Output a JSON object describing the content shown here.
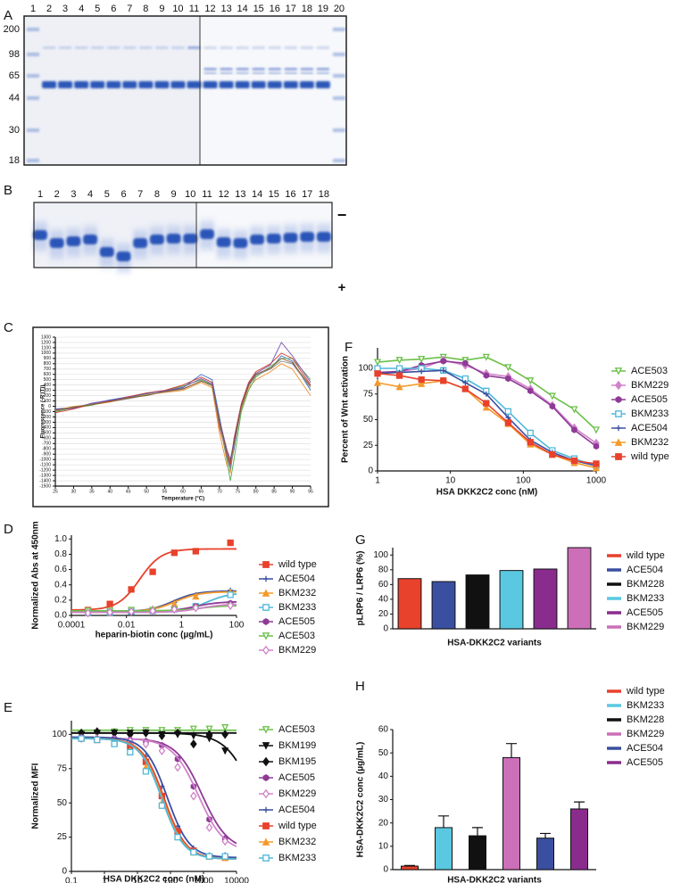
{
  "gels": {
    "a": {
      "label": "A",
      "lanes": [
        "1",
        "2",
        "3",
        "4",
        "5",
        "6",
        "7",
        "8",
        "9",
        "10",
        "11",
        "12",
        "13",
        "14",
        "15",
        "16",
        "17",
        "18",
        "19",
        "20"
      ],
      "markers": [
        "200",
        "98",
        "65",
        "44",
        "30",
        "18"
      ]
    },
    "b": {
      "label": "B",
      "lanes": [
        "1",
        "2",
        "3",
        "4",
        "5",
        "6",
        "7",
        "8",
        "9",
        "10",
        "11",
        "12",
        "13",
        "14",
        "15",
        "16",
        "17",
        "18"
      ],
      "polarity": [
        "−",
        "+"
      ]
    }
  },
  "chart_data": [
    {
      "type": "line",
      "label": "C",
      "x_label": "Temperature (°C)",
      "y_label": "Fluorescence (-R'(T))",
      "x": [
        25,
        30,
        35,
        40,
        45,
        50,
        55,
        60,
        65,
        68,
        70,
        72,
        73,
        74,
        76,
        78,
        80,
        84,
        87,
        90,
        95
      ],
      "xlim": [
        25,
        95
      ],
      "xticks": [
        25,
        30,
        35,
        40,
        45,
        50,
        55,
        60,
        65,
        70,
        75,
        80,
        85,
        90,
        95
      ],
      "ylim": [
        -1500,
        1300
      ],
      "yticks": [
        -1500,
        -1400,
        -1300,
        -1200,
        -1100,
        -1000,
        -900,
        -800,
        -700,
        -600,
        -500,
        -400,
        -300,
        -200,
        -100,
        0,
        100,
        200,
        300,
        400,
        500,
        600,
        700,
        800,
        900,
        1000,
        1100,
        1200,
        1300
      ],
      "grid": true,
      "series": [
        {
          "color": "#3b6fc4",
          "values": [
            -50,
            -20,
            50,
            120,
            180,
            200,
            280,
            350,
            600,
            500,
            -200,
            -900,
            -1150,
            -800,
            0,
            400,
            600,
            700,
            950,
            850,
            300
          ]
        },
        {
          "color": "#f0902a",
          "values": [
            -80,
            0,
            30,
            80,
            150,
            220,
            260,
            300,
            450,
            350,
            -500,
            -1100,
            -1250,
            -700,
            -50,
            350,
            500,
            650,
            800,
            700,
            200
          ]
        },
        {
          "color": "#50b050",
          "values": [
            -100,
            -30,
            20,
            100,
            160,
            230,
            300,
            380,
            500,
            400,
            -300,
            -1000,
            -1400,
            -1000,
            -100,
            300,
            550,
            750,
            900,
            900,
            500
          ]
        },
        {
          "color": "#d23a2a",
          "values": [
            -120,
            -50,
            40,
            100,
            180,
            250,
            300,
            400,
            550,
            450,
            -400,
            -900,
            -1100,
            -600,
            50,
            450,
            650,
            800,
            1000,
            900,
            400
          ]
        },
        {
          "color": "#7b4fb0",
          "values": [
            -60,
            -40,
            60,
            110,
            170,
            240,
            290,
            360,
            520,
            420,
            -250,
            -800,
            -1000,
            -650,
            20,
            420,
            620,
            780,
            1200,
            950,
            450
          ]
        },
        {
          "color": "#8a8a8a",
          "values": [
            -90,
            -10,
            40,
            90,
            140,
            210,
            270,
            320,
            480,
            380,
            -350,
            -950,
            -1200,
            -750,
            -30,
            380,
            580,
            700,
            850,
            800,
            350
          ]
        },
        {
          "color": "#8b5a2b",
          "values": [
            -70,
            -20,
            30,
            90,
            160,
            200,
            280,
            330,
            470,
            400,
            -300,
            -850,
            -1050,
            -700,
            0,
            400,
            600,
            720,
            900,
            820,
            380
          ]
        }
      ]
    },
    {
      "type": "scatter",
      "label": "D",
      "x_label": "heparin-biotin conc (µg/mL)",
      "y_label": "Normalized Abs at 450nm",
      "log_x": true,
      "xlim": [
        0.0001,
        100
      ],
      "xticks": [
        0.0001,
        0.01,
        1,
        100
      ],
      "ylim": [
        0,
        1.05
      ],
      "yticks": [
        {
          "value": 0,
          "label": "0.0"
        },
        {
          "value": 0.2,
          "label": "0.2"
        },
        {
          "value": 0.4,
          "label": "0.4"
        },
        {
          "value": 0.6,
          "label": "0.6"
        },
        {
          "value": 0.8,
          "label": "0.8"
        },
        {
          "value": 1,
          "label": "1.0"
        }
      ],
      "x": [
        0.0004,
        0.0025,
        0.015,
        0.09,
        0.55,
        3.3,
        60
      ],
      "legend": "right",
      "series": [
        {
          "name": "wild type",
          "color": "#e8412c",
          "marker": "square",
          "values": [
            0.07,
            0.15,
            0.34,
            0.57,
            0.82,
            0.84,
            0.95
          ],
          "fit": [
            0.07,
            0.87,
            0.03,
            1.1
          ]
        },
        {
          "name": "ACE504",
          "color": "#3b4fa0",
          "marker": "plus",
          "values": [
            0.05,
            0.05,
            0.06,
            0.09,
            0.17,
            0.27,
            0.33
          ],
          "fit": [
            0.05,
            0.32,
            0.5,
            1
          ]
        },
        {
          "name": "BKM232",
          "color": "#f39a2b",
          "marker": "triangle",
          "values": [
            0.05,
            0.05,
            0.06,
            0.08,
            0.15,
            0.25,
            0.3
          ],
          "fit": [
            0.05,
            0.31,
            0.6,
            1
          ]
        },
        {
          "name": "BKM233",
          "color": "#4fb8d9",
          "marker": "open-square",
          "values": [
            0.04,
            0.04,
            0.05,
            0.06,
            0.08,
            0.12,
            0.27
          ],
          "fit": [
            0.04,
            0.3,
            8,
            1
          ]
        },
        {
          "name": "ACE505",
          "color": "#8e3a96",
          "marker": "hexagon",
          "values": [
            0.05,
            0.05,
            0.05,
            0.07,
            0.09,
            0.12,
            0.16
          ],
          "fit": [
            0.05,
            0.18,
            3,
            1
          ]
        },
        {
          "name": "ACE503",
          "color": "#6cc04a",
          "marker": "open-down-triangle",
          "values": [
            0.06,
            0.06,
            0.07,
            0.07,
            0.08,
            0.09,
            0.12
          ],
          "fit": [
            0.06,
            0.13,
            5,
            1
          ]
        },
        {
          "name": "BKM229",
          "color": "#d084c9",
          "marker": "open-diamond",
          "values": [
            0.03,
            0.04,
            0.05,
            0.06,
            0.08,
            0.1,
            0.13
          ],
          "fit": [
            0.04,
            0.15,
            5,
            1
          ]
        }
      ]
    },
    {
      "type": "scatter",
      "label": "E",
      "x_label": "HSA DKK2C2 conc (nM)",
      "y_label": "Normalized MFI",
      "log_x": true,
      "xlim": [
        0.1,
        10000
      ],
      "xticks": [
        0.1,
        1,
        10,
        100,
        1000,
        10000
      ],
      "ylim": [
        0,
        110
      ],
      "yticks": [
        0,
        25,
        50,
        75,
        100
      ],
      "x": [
        0.2,
        0.6,
        2,
        6,
        18,
        55,
        165,
        500,
        1500,
        4500
      ],
      "legend": "right",
      "series": [
        {
          "name": "ACE503",
          "color": "#6cc04a",
          "marker": "open-down-triangle",
          "values": [
            100,
            101,
            102,
            103,
            103,
            103,
            103,
            104,
            104,
            105
          ],
          "fit": [
            103,
            103,
            1000,
            1
          ]
        },
        {
          "name": "BKM199",
          "color": "#111111",
          "marker": "down-triangle",
          "values": [
            100,
            101,
            101,
            101,
            101,
            100,
            100,
            99,
            97,
            88
          ],
          "fit": [
            101,
            0,
            40000,
            1
          ]
        },
        {
          "name": "BKM195",
          "color": "#111111",
          "marker": "diamond",
          "values": [
            101,
            102,
            101,
            100,
            101,
            99,
            101,
            93,
            100,
            100
          ],
          "fit": [
            101,
            101,
            1000,
            1
          ]
        },
        {
          "name": "ACE505",
          "color": "#8e3a96",
          "marker": "hexagon",
          "values": [
            98,
            97,
            97,
            96,
            95,
            92,
            82,
            62,
            38,
            24
          ],
          "fit": [
            97,
            15,
            900,
            1.1
          ]
        },
        {
          "name": "BKM229",
          "color": "#d084c9",
          "marker": "open-diamond",
          "values": [
            97,
            97,
            96,
            95,
            93,
            88,
            76,
            55,
            32,
            22
          ],
          "fit": [
            97,
            14,
            700,
            1.1
          ]
        },
        {
          "name": "ACE504",
          "color": "#3b4fa0",
          "marker": "plus",
          "values": [
            98,
            97,
            96,
            93,
            84,
            62,
            33,
            17,
            12,
            12
          ],
          "fit": [
            98,
            10,
            80,
            1.3
          ]
        },
        {
          "name": "wild type",
          "color": "#e8412c",
          "marker": "square",
          "values": [
            97,
            96,
            94,
            91,
            80,
            55,
            29,
            15,
            11,
            10
          ],
          "fit": [
            97,
            9,
            65,
            1.3
          ]
        },
        {
          "name": "BKM232",
          "color": "#f39a2b",
          "marker": "triangle",
          "values": [
            97,
            96,
            94,
            88,
            76,
            50,
            26,
            14,
            11,
            10
          ],
          "fit": [
            97,
            9,
            58,
            1.3
          ]
        },
        {
          "name": "BKM233",
          "color": "#4fb8d9",
          "marker": "open-square",
          "values": [
            97,
            96,
            93,
            87,
            73,
            48,
            25,
            14,
            11,
            11
          ],
          "fit": [
            97,
            9,
            55,
            1.3
          ]
        }
      ]
    },
    {
      "type": "line",
      "label": "F",
      "x_label": "HSA DKK2C2 conc (nM)",
      "y_label": "Percent of Wnt activation",
      "log_x": true,
      "xlim": [
        1,
        1000
      ],
      "xticks": [
        1,
        10,
        100,
        1000
      ],
      "ylim": [
        0,
        120
      ],
      "yticks": [
        0,
        25,
        50,
        75,
        100
      ],
      "x": [
        1,
        2,
        4,
        8,
        16,
        31,
        62,
        125,
        250,
        500,
        1000
      ],
      "legend": "right",
      "markers": true,
      "series": [
        {
          "name": "ACE503",
          "color": "#6cc04a",
          "marker": "open-down-triangle",
          "values": [
            106,
            108,
            109,
            111,
            108,
            111,
            101,
            88,
            73,
            60,
            40
          ]
        },
        {
          "name": "BKM229",
          "color": "#d084c9",
          "marker": "diamond",
          "values": [
            95,
            97,
            100,
            108,
            103,
            95,
            92,
            80,
            64,
            42,
            27
          ]
        },
        {
          "name": "ACE505",
          "color": "#8e3a96",
          "marker": "hexagon",
          "values": [
            96,
            97,
            103,
            107,
            105,
            93,
            90,
            78,
            63,
            40,
            24
          ]
        },
        {
          "name": "BKM233",
          "color": "#4fb8d9",
          "marker": "open-square",
          "values": [
            100,
            100,
            100,
            98,
            90,
            78,
            58,
            37,
            20,
            12,
            5
          ]
        },
        {
          "name": "ACE504",
          "color": "#3b4fa0",
          "marker": "plus",
          "values": [
            95,
            96,
            97,
            98,
            86,
            75,
            52,
            30,
            18,
            10,
            5
          ]
        },
        {
          "name": "BKM232",
          "color": "#f39a2b",
          "marker": "triangle",
          "values": [
            86,
            82,
            85,
            88,
            80,
            62,
            46,
            26,
            16,
            8,
            3
          ]
        },
        {
          "name": "wild type",
          "color": "#e8412c",
          "marker": "square",
          "values": [
            95,
            93,
            89,
            88,
            80,
            66,
            47,
            28,
            16,
            10,
            7
          ]
        }
      ]
    },
    {
      "type": "bar",
      "label": "G",
      "x_label": "HSA-DKK2C2 variants",
      "y_label": "pLRP6 / LRP6 (%)",
      "ylim": [
        0,
        110
      ],
      "yticks": [
        0,
        20,
        40,
        60,
        80,
        100
      ],
      "legend": "right",
      "categories": [
        "wild type",
        "ACE504",
        "BKM228",
        "BKM233",
        "ACE505",
        "BKM229"
      ],
      "colors": [
        "#e8412c",
        "#3b4fa0",
        "#111111",
        "#5ac8e0",
        "#8a2c8e",
        "#cc6fb8"
      ],
      "values": [
        68,
        64,
        73,
        79,
        81,
        110
      ]
    },
    {
      "type": "bar",
      "label": "H",
      "x_label": "HSA-DKK2C2 variants",
      "y_label": "HSA-DKK2C2 conc (µg/mL)",
      "ylim": [
        0,
        60
      ],
      "yticks": [
        0,
        10,
        20,
        30,
        40,
        50,
        60
      ],
      "legend": "right",
      "categories": [
        "wild type",
        "BKM233",
        "BKM228",
        "BKM229",
        "ACE504",
        "ACE505"
      ],
      "colors": [
        "#e8412c",
        "#5ac8e0",
        "#111111",
        "#cc6fb8",
        "#3b4fa0",
        "#8a2c8e"
      ],
      "values": [
        1.5,
        18,
        14.5,
        48,
        13.5,
        26
      ],
      "errors": [
        0.3,
        5,
        3.5,
        6,
        2,
        3
      ]
    }
  ]
}
